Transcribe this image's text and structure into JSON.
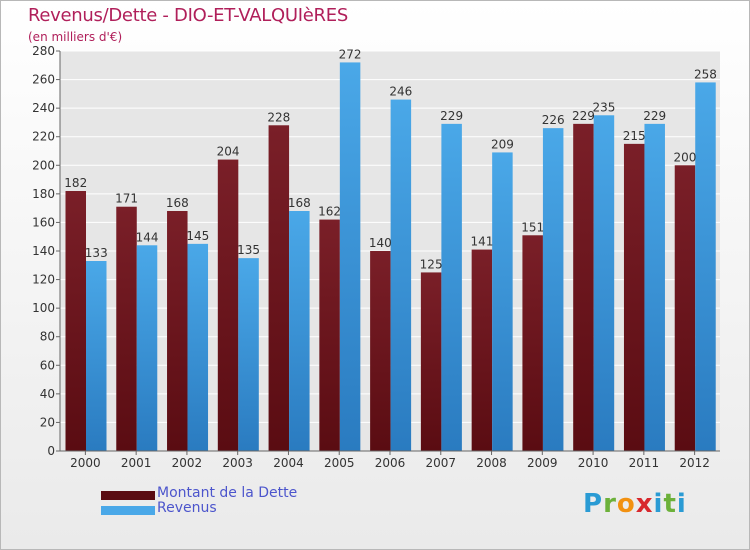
{
  "title": "Revenus/Dette - DIO-ET-VALQUIèRES",
  "subtitle": "(en milliers d'€)",
  "logo": {
    "letters": [
      "P",
      "r",
      "o",
      "x",
      "i",
      "t",
      "i"
    ],
    "colors": [
      "#2a9bd4",
      "#6cb13a",
      "#f29111",
      "#d8282d",
      "#2a9bd4",
      "#6cb13a",
      "#2a9bd4"
    ]
  },
  "colors": {
    "debt": "#7a1f28",
    "debt_dark": "#5a0c12",
    "revenue": "#4aa8e8",
    "revenue_dark": "#2a7bc0"
  },
  "chart_data": {
    "type": "bar",
    "categories": [
      "2000",
      "2001",
      "2002",
      "2003",
      "2004",
      "2005",
      "2006",
      "2007",
      "2008",
      "2009",
      "2010",
      "2011",
      "2012"
    ],
    "series": [
      {
        "name": "Montant de la Dette",
        "values": [
          182,
          171,
          168,
          204,
          228,
          162,
          140,
          125,
          141,
          151,
          229,
          215,
          200
        ]
      },
      {
        "name": "Revenus",
        "values": [
          133,
          144,
          145,
          135,
          168,
          272,
          246,
          229,
          209,
          226,
          235,
          229,
          258
        ]
      }
    ],
    "ylim": [
      0,
      280
    ],
    "yticks": [
      0,
      20,
      40,
      60,
      80,
      100,
      120,
      140,
      160,
      180,
      200,
      220,
      240,
      260,
      280
    ],
    "grid": true,
    "legend": "bottom-left"
  }
}
